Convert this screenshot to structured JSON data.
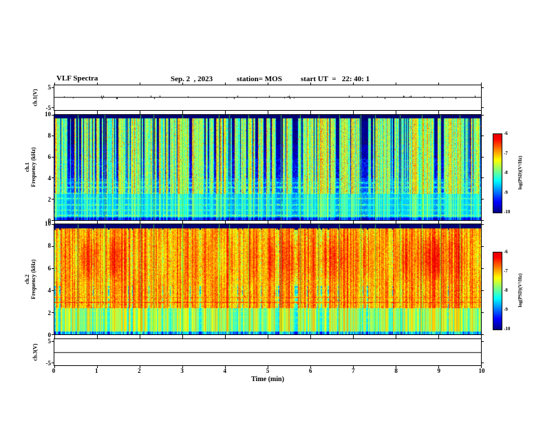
{
  "title": {
    "main": "VLF Spectra",
    "date": "Sep. 2  , 2023",
    "station": "station= MOS",
    "start_ut": "start UT  =   22: 40: 1"
  },
  "x_axis": {
    "label": "Time (min)",
    "ticks": [
      "0",
      "1",
      "2",
      "3",
      "4",
      "5",
      "6",
      "7",
      "8",
      "9",
      "10"
    ],
    "range_min": [
      0,
      10
    ]
  },
  "panels": {
    "ch1_voltage": {
      "label": "ch.1(V)",
      "yticks": [
        "5",
        "-5"
      ],
      "ylim": [
        -5,
        5
      ]
    },
    "ch1_spectrogram": {
      "label_line1": "ch.1",
      "label_line2": "Frequency (kHz)",
      "yticks": [
        "10",
        "8",
        "6",
        "4",
        "2",
        "0"
      ],
      "ylim": [
        0,
        10
      ]
    },
    "ch2_spectrogram": {
      "label_line1": "ch.2",
      "label_line2": "Frequency (kHz)",
      "yticks": [
        "10",
        "8",
        "6",
        "4",
        "2",
        "0"
      ],
      "ylim": [
        0,
        10
      ]
    },
    "ch3_voltage": {
      "label": "ch.3(V)",
      "yticks": [
        "5",
        "-5"
      ],
      "ylim": [
        -5,
        5
      ]
    }
  },
  "colorbar": {
    "label": "log(PSD)(V²/Hz)",
    "ticks": [
      "-6",
      "-7",
      "-8",
      "-9",
      "-10"
    ],
    "range": [
      -10,
      -6
    ],
    "colormap": "jet",
    "top_color": "#dd0000",
    "bottom_color": "#000087"
  },
  "chart_data": [
    {
      "type": "line",
      "name": "ch.1 voltage waveform",
      "xlabel": "Time (min)",
      "xlim": [
        0,
        10
      ],
      "ylabel": "ch.1(V)",
      "ylim": [
        -5,
        5
      ],
      "mean_value": 0.2,
      "spikes": true,
      "description": "nearly constant trace at ~0.2 V with tiny spikes across the full 10 minutes"
    },
    {
      "type": "heatmap",
      "name": "ch.1 spectrogram",
      "xlabel": "Time (min)",
      "xlim": [
        0,
        10
      ],
      "ylabel": "Frequency (kHz)",
      "ylim": [
        0,
        10
      ],
      "zlabel": "log(PSD)(V²/Hz)",
      "zlim": [
        -10,
        -6
      ],
      "bands": [
        {
          "f": [
            9.4,
            10.0
          ],
          "base": -10.5,
          "noise": 0.2
        },
        {
          "f": [
            7.2,
            9.4
          ],
          "base": -10.1,
          "noise": 0.4
        },
        {
          "f": [
            5.8,
            7.2
          ],
          "base": -9.8,
          "noise": 0.45
        },
        {
          "f": [
            4.0,
            5.8
          ],
          "base": -9.5,
          "noise": 0.5
        },
        {
          "f": [
            2.4,
            4.0
          ],
          "base": -9.1,
          "noise": 0.5
        },
        {
          "f": [
            0.25,
            2.4
          ],
          "base": -9.0,
          "noise": 0.55
        },
        {
          "f": [
            0.0,
            0.25
          ],
          "base": -9.9,
          "noise": 0.3
        }
      ],
      "h_lines": [
        {
          "f": 0.45,
          "amp": 1.1
        },
        {
          "f": 0.95,
          "amp": 0.9
        },
        {
          "f": 1.45,
          "amp": 1.0
        },
        {
          "f": 2.05,
          "amp": 0.9
        },
        {
          "f": 2.55,
          "amp": 0.8
        },
        {
          "f": 3.1,
          "amp": 0.9
        },
        {
          "f": 3.55,
          "amp": 0.6
        }
      ],
      "streaks": {
        "f": [
          2.5,
          9.7
        ],
        "probability": 0.42,
        "level": [
          -8.8,
          -6.8
        ]
      },
      "streak_bleed": {
        "f": [
          0.0,
          2.5
        ],
        "gain": 1.4
      },
      "spikes": {
        "probability": 0.0035,
        "level": -6.2
      },
      "interference_minutes": [
        0.55,
        1.18,
        2.02,
        2.32,
        3.0,
        3.85,
        4.1,
        4.55,
        5.3,
        5.75,
        6.2,
        6.67,
        7.18,
        7.52,
        8.1,
        8.62,
        9.05,
        9.5
      ],
      "description": "dark-blue/black background above 4 kHz crossed by dense vertical sferic streaks (green/yellow, occasional red) reaching -7 to -6.5; blue band below 4 kHz with green horizontal lines near 0.5-3.5 kHz; black strip 9.4-10 kHz"
    },
    {
      "type": "heatmap",
      "name": "ch.2 spectrogram",
      "xlabel": "Time (min)",
      "xlim": [
        0,
        10
      ],
      "ylabel": "Frequency (kHz)",
      "ylim": [
        0,
        10
      ],
      "zlabel": "log(PSD)(V²/Hz)",
      "zlim": [
        -10,
        -6
      ],
      "bands": [
        {
          "f": [
            9.5,
            10.0
          ],
          "base": -10.4,
          "noise": 0.25
        },
        {
          "f": [
            4.4,
            9.5
          ],
          "base": -7.5,
          "noise": 0.6
        },
        {
          "f": [
            3.7,
            4.4
          ],
          "base": -8.6,
          "noise": 0.45
        },
        {
          "f": [
            2.4,
            3.7
          ],
          "base": -8.2,
          "noise": 0.5
        },
        {
          "f": [
            0.25,
            2.4
          ],
          "base": -8.7,
          "noise": 0.5
        },
        {
          "f": [
            0.0,
            0.25
          ],
          "base": -9.7,
          "noise": 0.3
        }
      ],
      "h_lines": [
        {
          "f": 2.9,
          "amp": 1.7
        },
        {
          "f": 3.35,
          "amp": 1.3
        },
        {
          "f": 4.15,
          "amp": 1.0
        },
        {
          "f": 1.0,
          "amp": 0.6
        },
        {
          "f": 1.55,
          "amp": 0.7
        },
        {
          "f": 2.1,
          "amp": 0.7
        }
      ],
      "streaks": {
        "f": [
          2.4,
          9.6
        ],
        "probability": 0.7,
        "level": [
          -7.8,
          -6.3
        ]
      },
      "streak_bleed": {
        "f": [
          0.0,
          2.4
        ],
        "gain": 1.8
      },
      "blobs": {
        "f": [
          4.6,
          9.2
        ],
        "gain": 3.2
      },
      "spikes": {
        "probability": 0.006,
        "level": -6.05
      },
      "interference_minutes": [
        0.55,
        1.18,
        2.02,
        2.32,
        3.0,
        3.85,
        4.1,
        4.55,
        5.3,
        5.75,
        6.2,
        6.67,
        7.18,
        7.52,
        8.1,
        8.62,
        9.05,
        9.5
      ],
      "description": "intense activity 4.5-9.5 kHz: green base saturating to large red patches near -6; bright green horizontal lines at ~2.9 and ~3.35 kHz; blue band with cyan vertical streaks below 2.5 kHz; black strip 9.5-10 kHz"
    },
    {
      "type": "line",
      "name": "ch.3 voltage waveform",
      "xlabel": "Time (min)",
      "xlim": [
        0,
        10
      ],
      "ylabel": "ch.3(V)",
      "ylim": [
        -5,
        5
      ],
      "mean_value": 0.0,
      "spikes": false,
      "description": "flat trace at ~0 V across the full 10 minutes"
    }
  ]
}
